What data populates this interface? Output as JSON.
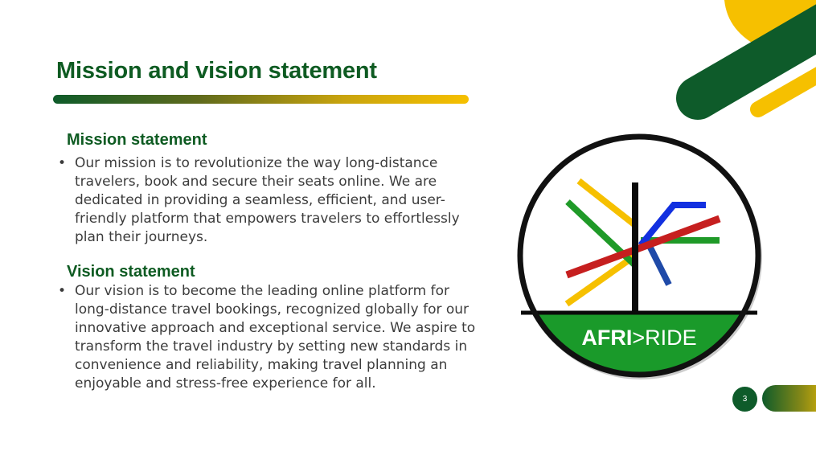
{
  "slide": {
    "title": "Mission and vision statement",
    "mission": {
      "heading": "Mission statement",
      "text": "Our mission is to revolutionize the way long-distance travelers, book and secure their seats online. We are dedicated in providing a seamless, efficient, and user-friendly platform that empowers travelers to effortlessly plan their journeys."
    },
    "vision": {
      "heading": "Vision statement",
      "text": "Our vision is to become the leading online platform for long-distance travel bookings, recognized globally for our innovative approach and exceptional service. We aspire to transform the travel industry by setting new standards in convenience and reliability, making travel planning an enjoyable and stress-free experience for all."
    },
    "bullet_glyph": "•",
    "page_number": "3"
  },
  "logo": {
    "brand_bold": "AFRI",
    "brand_rest": ">RIDE"
  },
  "colors": {
    "brand_green": "#0e5b22",
    "accent_yellow": "#f6c000",
    "logo_red": "#c61f1f",
    "logo_blue": "#1230e0",
    "logo_navy": "#1f4aa8",
    "logo_green": "#1f9a28",
    "logo_ground_green": "#1a9a2a"
  }
}
